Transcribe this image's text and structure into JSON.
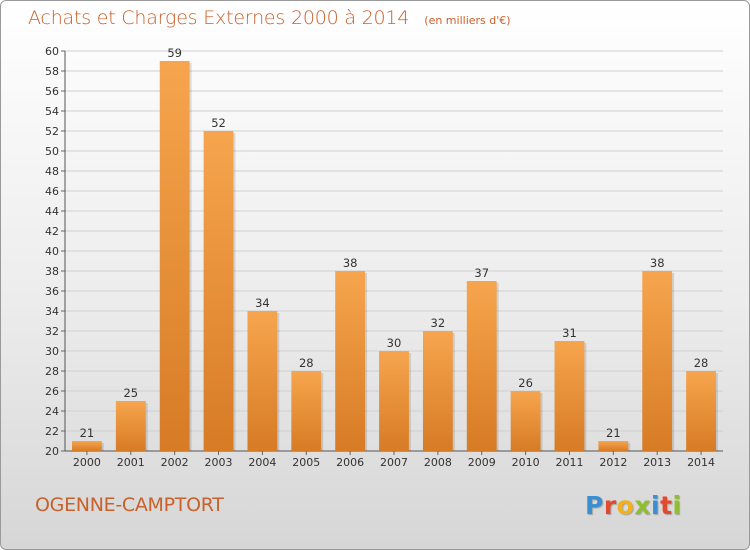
{
  "title": "Achats et Charges Externes 2000 à 2014",
  "unit_note": "(en milliers d'€)",
  "commune": "OGENNE-CAMPTORT",
  "logo_text": "Proxiti",
  "colors": {
    "title": "#c8612a",
    "bar_top": "#f6a54e",
    "bar_bottom": "#d77b25",
    "grid": "#d0d0d0"
  },
  "chart_data": {
    "type": "bar",
    "categories": [
      "2000",
      "2001",
      "2002",
      "2003",
      "2004",
      "2005",
      "2006",
      "2007",
      "2008",
      "2009",
      "2010",
      "2011",
      "2012",
      "2013",
      "2014"
    ],
    "values": [
      21,
      25,
      59,
      52,
      34,
      28,
      38,
      30,
      32,
      37,
      26,
      31,
      21,
      38,
      28
    ],
    "title": "Achats et Charges Externes 2000 à 2014",
    "ylabel": "",
    "xlabel": "",
    "ylim": [
      20,
      60
    ],
    "yticks": [
      20,
      22,
      24,
      26,
      28,
      30,
      32,
      34,
      36,
      38,
      40,
      42,
      44,
      46,
      48,
      50,
      52,
      54,
      56,
      58,
      60
    ],
    "grid": true
  }
}
